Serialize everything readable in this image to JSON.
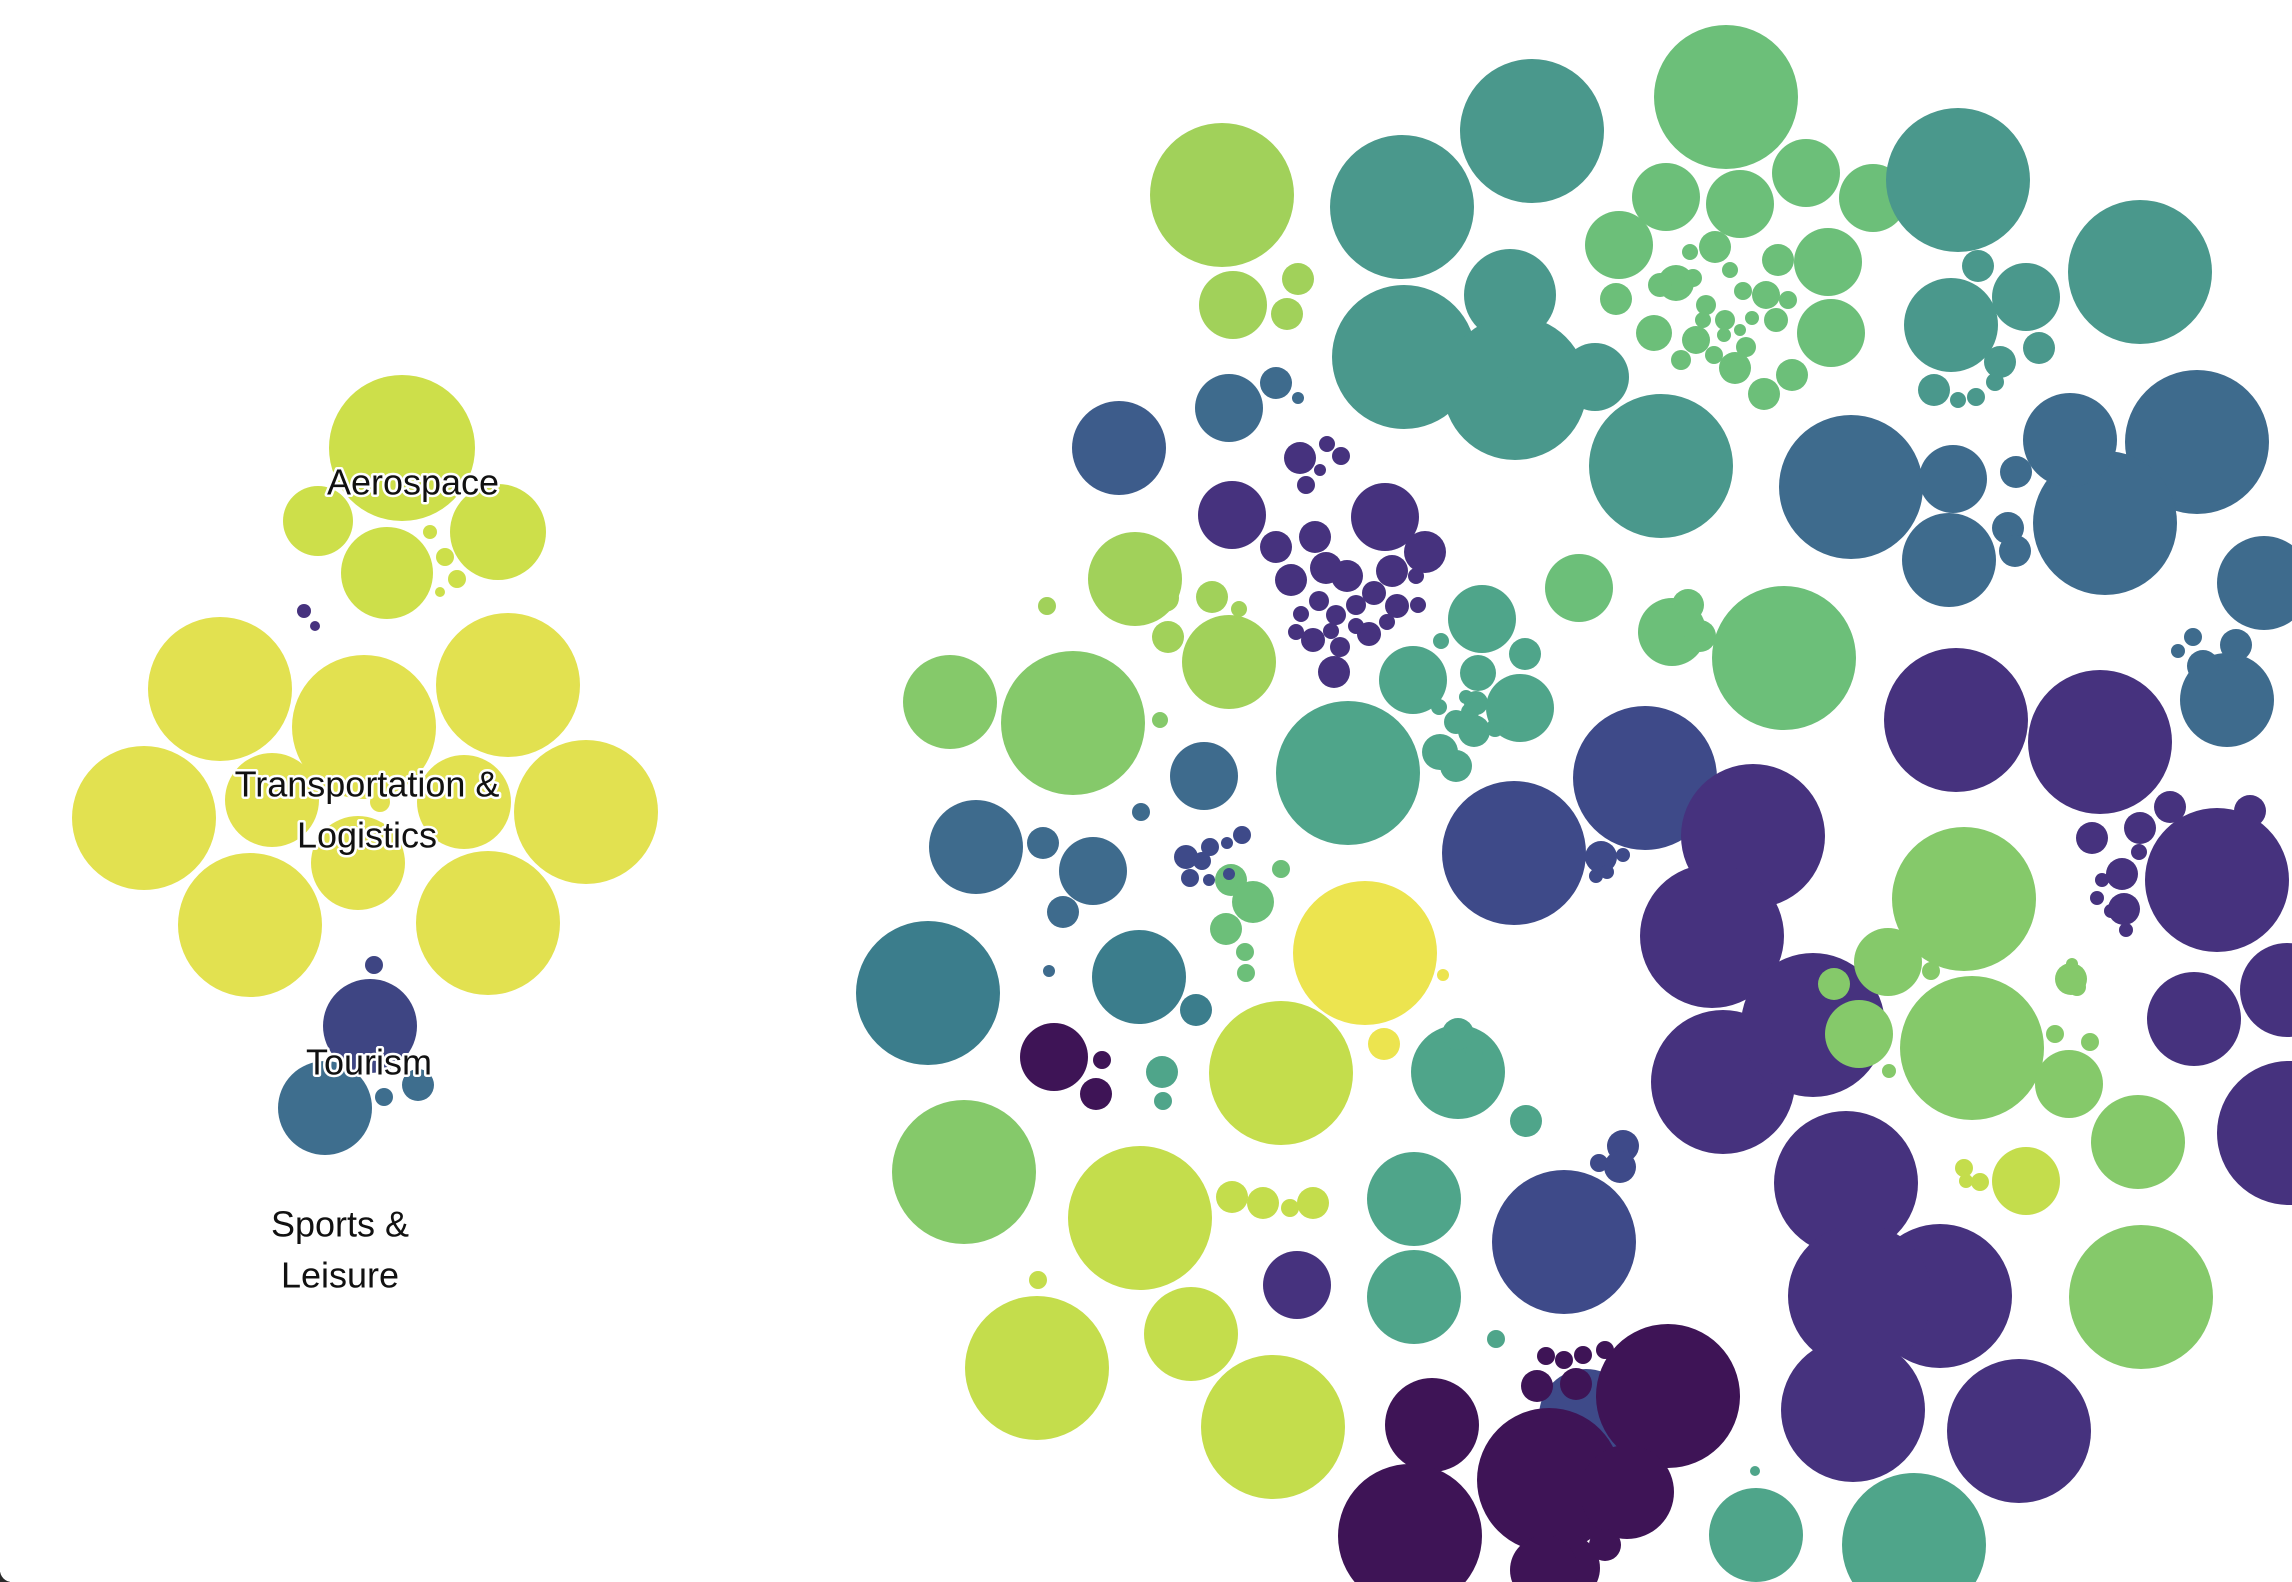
{
  "chart_data": {
    "type": "packed-bubble",
    "title": "",
    "color_scale": "viridis",
    "labeled_clusters": [
      {
        "label_lines": [
          "Aerospace"
        ],
        "color": "#cddf4a"
      },
      {
        "label_lines": [
          "Transportation &",
          "Logistics"
        ],
        "color": "#e2e150"
      },
      {
        "label_lines": [
          "Tourism"
        ],
        "color": "#3e4583"
      },
      {
        "label_lines": [
          "Sports &",
          "Leisure"
        ],
        "color": "#3e6e8e"
      }
    ],
    "palette": {
      "deep_purple": "#3e1456",
      "purple": "#46327e",
      "indigo": "#3e4a89",
      "slate_blue": "#3d5c8b",
      "steel_blue": "#3e6b8d",
      "blue_teal": "#3b7d8c",
      "teal": "#4a988c",
      "sea_green": "#4fa58a",
      "green": "#6cbf79",
      "light_green": "#85c96a",
      "lime": "#a1d15a",
      "yellow_green": "#c4dd4c",
      "bright_yellow": "#ece44f"
    }
  }
}
